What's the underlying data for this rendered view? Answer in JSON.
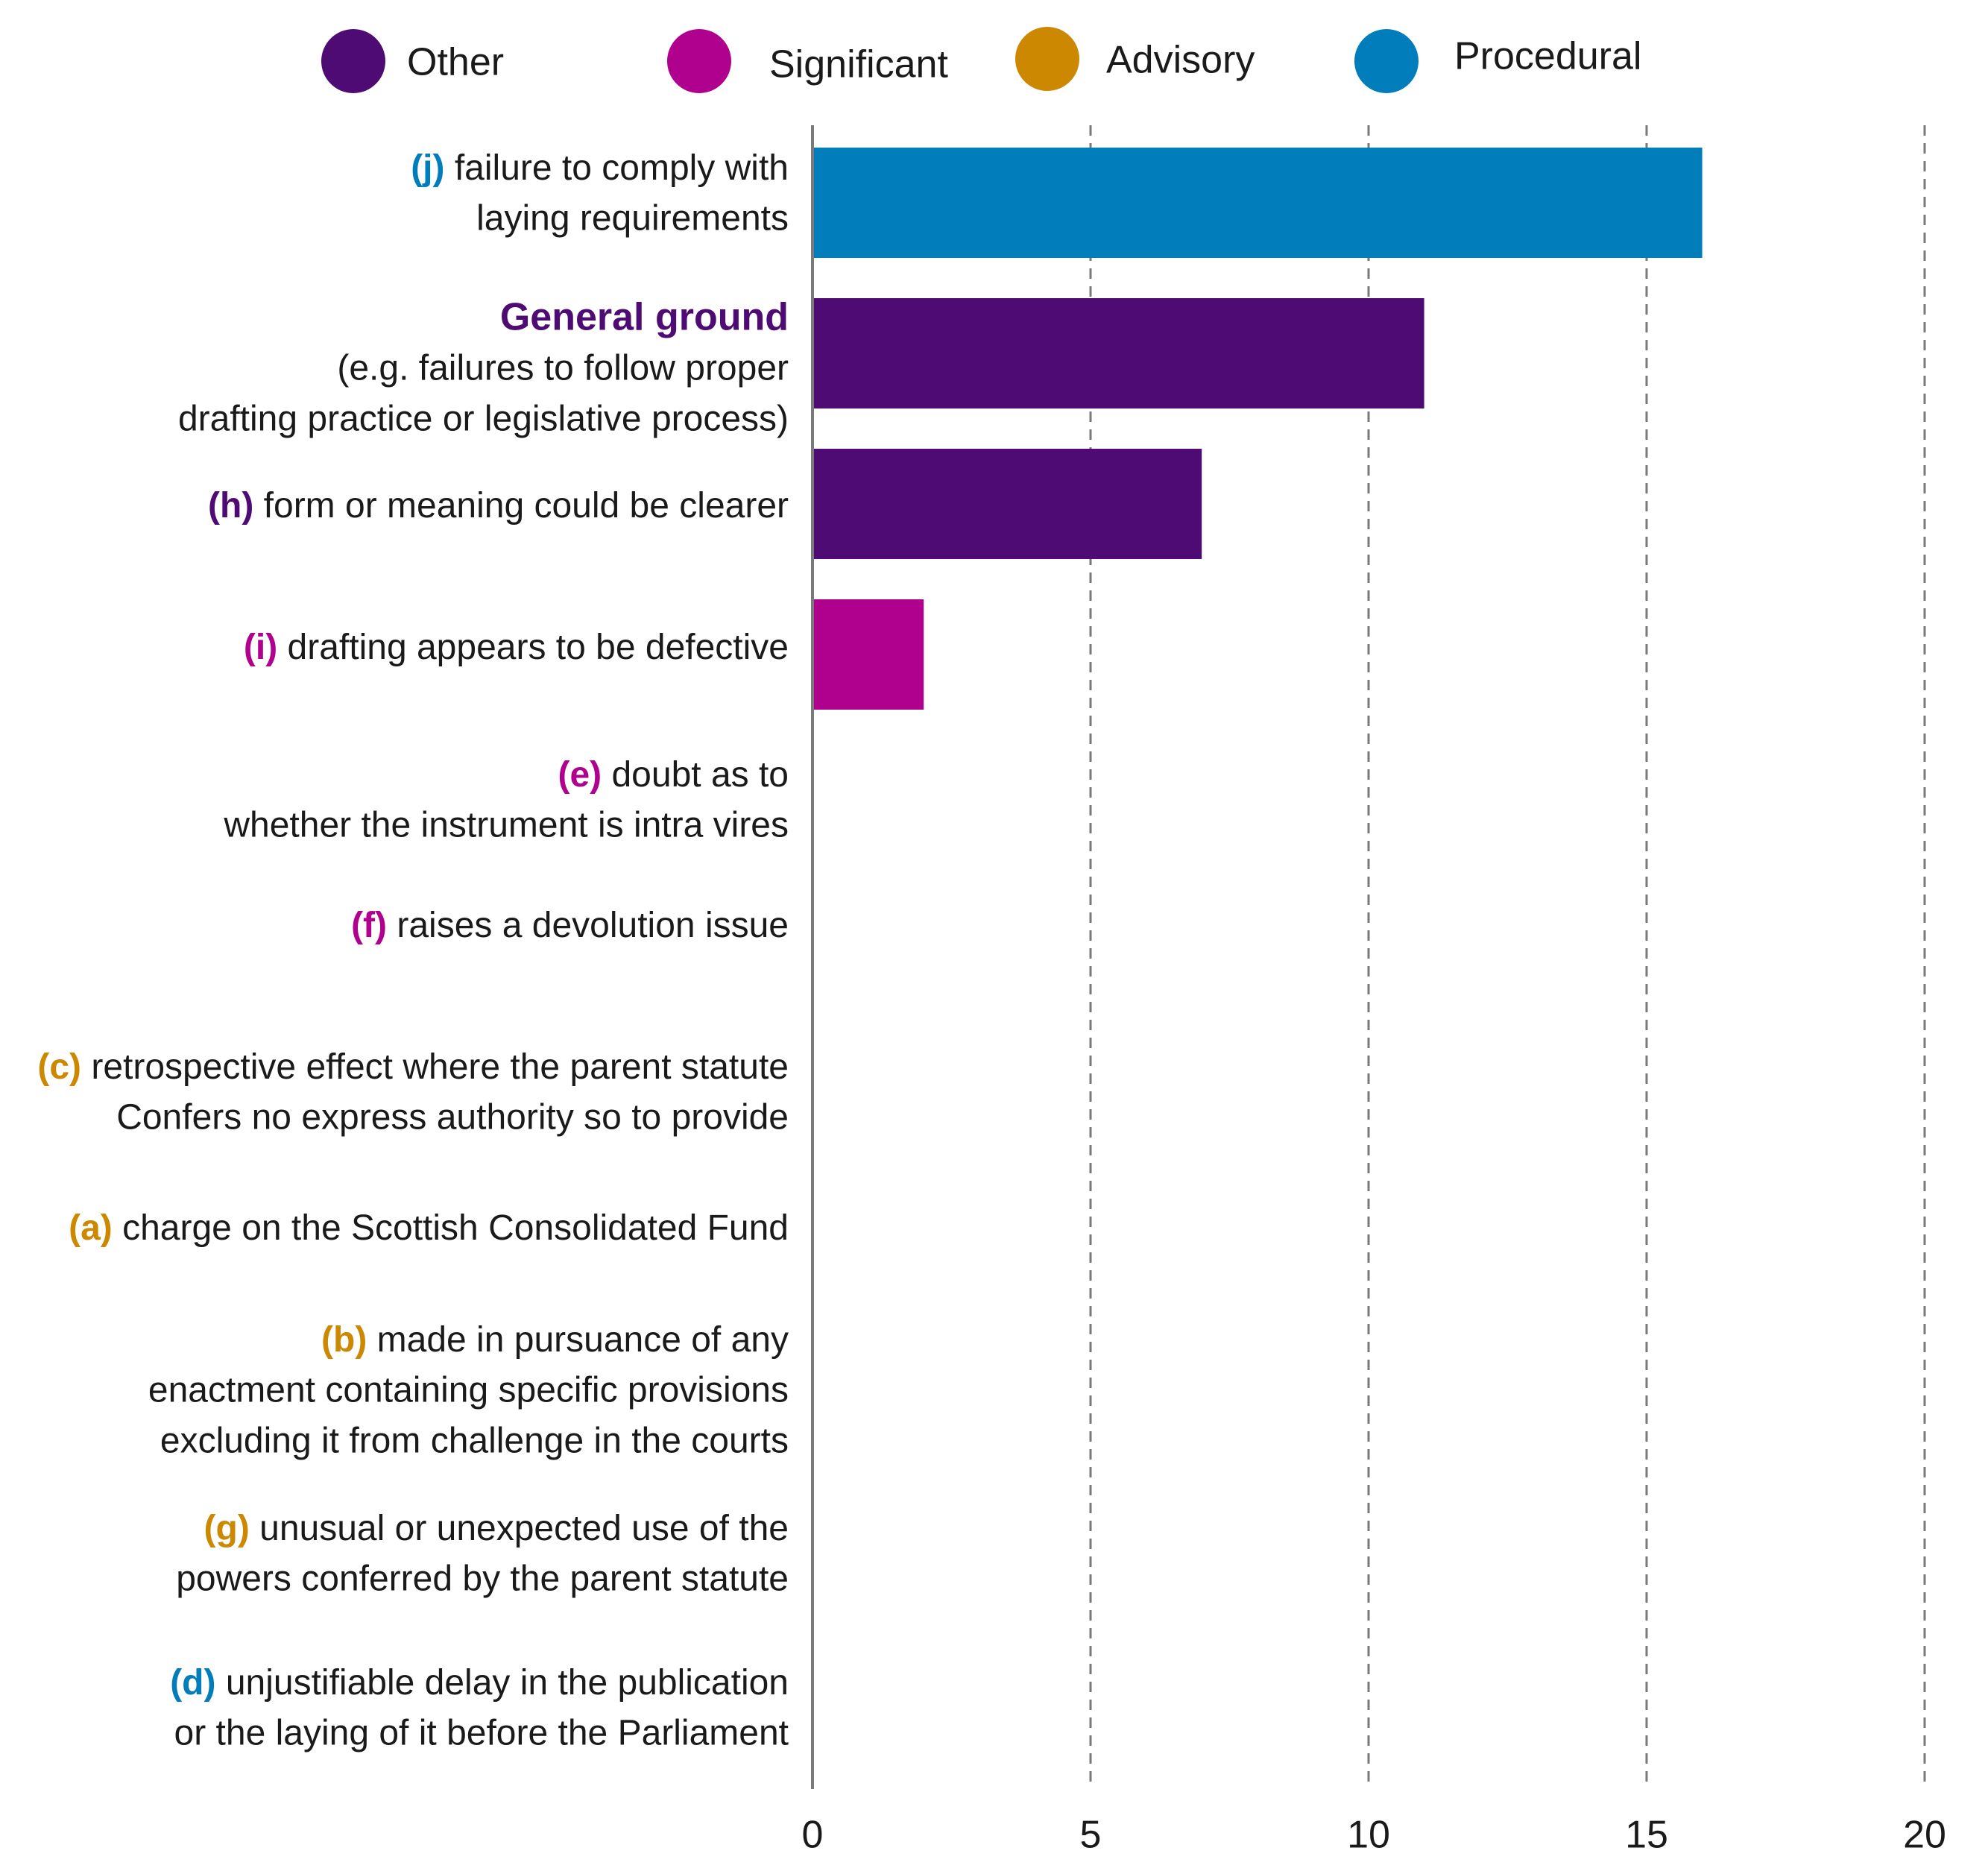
{
  "chart_data": {
    "type": "bar",
    "orientation": "horizontal",
    "title": "",
    "xlabel": "",
    "ylabel": "",
    "xlim": [
      0,
      20
    ],
    "x_ticks": [
      0,
      5,
      10,
      15,
      20
    ],
    "grid": "vertical dashed lines",
    "legend_position": "top",
    "legend": [
      {
        "name": "Other",
        "color": "#4F0B74"
      },
      {
        "name": "Significant",
        "color": "#B0008E"
      },
      {
        "name": "Advisory",
        "color": "#CC8800"
      },
      {
        "name": "Procedural",
        "color": "#007DBA"
      }
    ],
    "categories": [
      {
        "prefix": "(j)",
        "lines": [
          "failure to comply with",
          "laying requirements"
        ],
        "group": "Procedural",
        "value": 16
      },
      {
        "prefix": "",
        "heading": "General ground",
        "lines": [
          "(e.g. failures to follow proper",
          "drafting practice or legislative process)"
        ],
        "group": "Other",
        "value": 11
      },
      {
        "prefix": "(h)",
        "lines": [
          "form or meaning could be clearer"
        ],
        "group": "Other",
        "value": 7
      },
      {
        "prefix": "(i)",
        "lines": [
          "drafting appears to be defective"
        ],
        "group": "Significant",
        "value": 2
      },
      {
        "prefix": "(e)",
        "lines": [
          "doubt as to",
          "whether the instrument is intra vires"
        ],
        "group": "Significant",
        "value": 0
      },
      {
        "prefix": "(f)",
        "lines": [
          "raises a devolution issue"
        ],
        "group": "Significant",
        "value": 0
      },
      {
        "prefix": "(c)",
        "lines": [
          "retrospective effect where the parent statute",
          "Confers no express authority so to provide"
        ],
        "group": "Advisory",
        "value": 0
      },
      {
        "prefix": "(a)",
        "lines": [
          "charge on the Scottish Consolidated Fund"
        ],
        "group": "Advisory",
        "value": 0
      },
      {
        "prefix": "(b)",
        "lines": [
          "made in pursuance of any",
          "enactment containing specific provisions",
          "excluding it from challenge in the courts"
        ],
        "group": "Advisory",
        "value": 0
      },
      {
        "prefix": "(g)",
        "lines": [
          "unusual or unexpected use of the",
          "powers conferred by the parent statute"
        ],
        "group": "Advisory",
        "value": 0
      },
      {
        "prefix": "(d)",
        "lines": [
          "unjustifiable delay in the publication",
          "or the laying of it before the Parliament"
        ],
        "group": "Procedural",
        "value": 0
      }
    ]
  }
}
